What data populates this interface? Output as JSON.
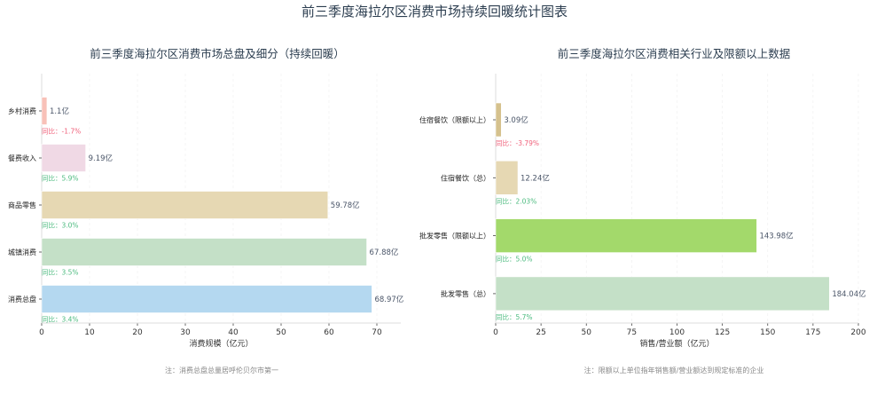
{
  "title": "前三季度海拉尔区消费市场持续回暖统计图表",
  "colors": {
    "up": "#4cbb7f",
    "down": "#f0607a"
  },
  "chart_data": [
    {
      "type": "bar",
      "orientation": "horizontal",
      "title": "前三季度海拉尔区消费市场总盘及细分（持续回暖）",
      "xlabel": "消费规模（亿元）",
      "ylabel": "",
      "xlim": [
        0,
        75
      ],
      "xticks": [
        0,
        10,
        20,
        30,
        40,
        50,
        60,
        70
      ],
      "grid": true,
      "categories": [
        "乡村消费",
        "餐费收入",
        "商品零售",
        "城镇消费",
        "消费总盘"
      ],
      "values": [
        1.1,
        9.19,
        59.78,
        67.88,
        68.97
      ],
      "value_labels": [
        "1.1亿",
        "9.19亿",
        "59.78亿",
        "67.88亿",
        "68.97亿"
      ],
      "yoy_labels": [
        "同比：-1.7%",
        "同比：5.9%",
        "同比：3.0%",
        "同比：3.5%",
        "同比：3.4%"
      ],
      "yoy_values": [
        -1.7,
        5.9,
        3.0,
        3.5,
        3.4
      ],
      "bar_colors": [
        "#f8c1b8",
        "#f0d9e5",
        "#e6d8b3",
        "#c4e0c7",
        "#b4d8f0"
      ],
      "note": "注：消费总盘总量居呼伦贝尔市第一"
    },
    {
      "type": "bar",
      "orientation": "horizontal",
      "title": "前三季度海拉尔区消费相关行业及限额以上数据",
      "xlabel": "销售/营业额（亿元）",
      "ylabel": "",
      "xlim": [
        0,
        200
      ],
      "xticks": [
        0,
        25,
        50,
        75,
        100,
        125,
        150,
        175,
        200
      ],
      "grid": true,
      "categories": [
        "住宿餐饮（限额以上）",
        "住宿餐饮（总）",
        "批发零售（限额以上）",
        "批发零售（总）"
      ],
      "values": [
        3.09,
        12.24,
        143.98,
        184.04
      ],
      "value_labels": [
        "3.09亿",
        "12.24亿",
        "143.98亿",
        "184.04亿"
      ],
      "yoy_labels": [
        "同比：-3.79%",
        "同比：2.03%",
        "同比：5.0%",
        "同比：5.7%"
      ],
      "yoy_values": [
        -3.79,
        2.03,
        5.0,
        5.7
      ],
      "bar_colors": [
        "#d5c18d",
        "#e6d8b3",
        "#a3d96b",
        "#c4e0c7"
      ],
      "note": "注：限额以上单位指年销售额/营业额达到规定标准的企业"
    }
  ]
}
